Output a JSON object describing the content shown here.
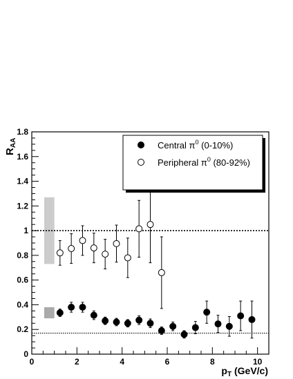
{
  "chart_data": {
    "type": "scatter",
    "xlabel": "p",
    "xlabel_sub": "T",
    "xlabel_unit": " (GeV/c)",
    "ylabel": "R",
    "ylabel_sub": "AA",
    "xlim": [
      0,
      10.5
    ],
    "ylim": [
      0,
      1.8
    ],
    "x_ticks": [
      0,
      2,
      4,
      6,
      8,
      10
    ],
    "x_tick_labels": [
      "0",
      "2",
      "4",
      "6",
      "8",
      "10"
    ],
    "y_ticks": [
      0,
      0.2,
      0.4,
      0.6,
      0.8,
      1.0,
      1.2,
      1.4,
      1.6,
      1.8
    ],
    "y_tick_labels": [
      "0",
      "0.2",
      "0.4",
      "0.6",
      "0.8",
      "1",
      "1.2",
      "1.4",
      "1.6",
      "1.8"
    ],
    "grid": false,
    "legend_position": "top-right",
    "reference_lines": [
      {
        "y": 1.0,
        "style": "dotted"
      },
      {
        "y": 0.17,
        "style": "dotted"
      }
    ],
    "systematic_boxes": [
      {
        "x0": 0.55,
        "x1": 1.0,
        "y0": 0.73,
        "y1": 1.27,
        "color": "#cccccc"
      },
      {
        "x0": 0.55,
        "x1": 1.0,
        "y0": 0.29,
        "y1": 0.38,
        "color": "#aaaaaa"
      }
    ],
    "series": [
      {
        "name": "Central π",
        "name_sup": "0",
        "name_suffix": " (0-10%)",
        "marker": "filled-circle",
        "x": [
          1.25,
          1.75,
          2.25,
          2.75,
          3.25,
          3.75,
          4.25,
          4.75,
          5.25,
          5.75,
          6.25,
          6.75,
          7.25,
          7.75,
          8.25,
          8.75,
          9.25,
          9.75
        ],
        "y": [
          0.335,
          0.38,
          0.38,
          0.315,
          0.27,
          0.26,
          0.25,
          0.275,
          0.25,
          0.19,
          0.225,
          0.16,
          0.215,
          0.34,
          0.245,
          0.225,
          0.31,
          0.28
        ],
        "err": [
          0.03,
          0.04,
          0.04,
          0.035,
          0.03,
          0.03,
          0.03,
          0.035,
          0.035,
          0.03,
          0.035,
          0.03,
          0.05,
          0.09,
          0.07,
          0.08,
          0.12,
          0.15
        ]
      },
      {
        "name": "Peripheral π",
        "name_sup": "0",
        "name_suffix": " (80-92%)",
        "marker": "open-circle",
        "x": [
          1.25,
          1.75,
          2.25,
          2.75,
          3.25,
          3.75,
          4.25,
          4.75,
          5.25,
          5.75
        ],
        "y": [
          0.82,
          0.855,
          0.92,
          0.86,
          0.81,
          0.895,
          0.78,
          1.015,
          1.05,
          0.66
        ],
        "err": [
          0.1,
          0.12,
          0.12,
          0.12,
          0.12,
          0.15,
          0.16,
          0.23,
          0.31,
          0.29
        ]
      }
    ]
  }
}
